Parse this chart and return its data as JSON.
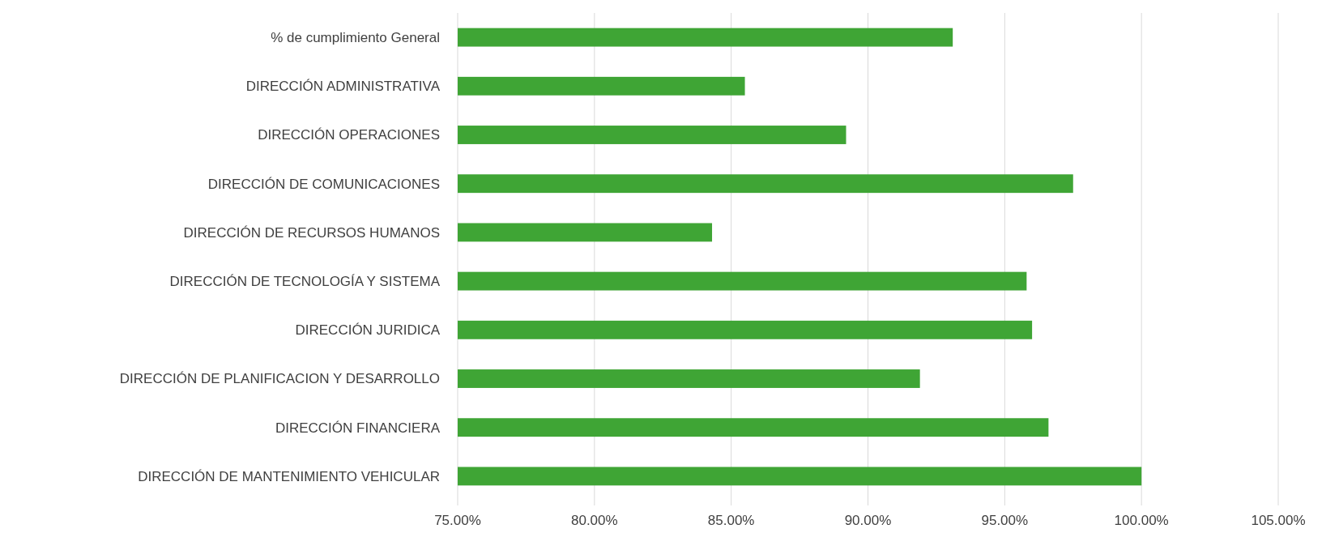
{
  "chart_data": {
    "type": "bar",
    "orientation": "horizontal",
    "categories": [
      "% de cumplimiento General",
      "DIRECCIÓN ADMINISTRATIVA",
      "DIRECCIÓN OPERACIONES",
      "DIRECCIÓN DE COMUNICACIONES",
      "DIRECCIÓN DE RECURSOS HUMANOS",
      "DIRECCIÓN DE TECNOLOGÍA Y SISTEMA",
      "DIRECCIÓN JURIDICA",
      "DIRECCIÓN DE PLANIFICACION Y DESARROLLO",
      "DIRECCIÓN FINANCIERA",
      "DIRECCIÓN DE MANTENIMIENTO VEHICULAR"
    ],
    "values": [
      93.1,
      85.5,
      89.2,
      97.5,
      84.3,
      95.8,
      96.0,
      91.9,
      96.6,
      100.0
    ],
    "color": "#3fa535",
    "xlim": [
      75,
      105
    ],
    "xticks": [
      {
        "value": 75,
        "label": "75.00%"
      },
      {
        "value": 80,
        "label": "80.00%"
      },
      {
        "value": 85,
        "label": "85.00%"
      },
      {
        "value": 90,
        "label": "90.00%"
      },
      {
        "value": 95,
        "label": "95.00%"
      },
      {
        "value": 100,
        "label": "100.00%"
      },
      {
        "value": 105,
        "label": "105.00%"
      }
    ],
    "grid": "x"
  }
}
